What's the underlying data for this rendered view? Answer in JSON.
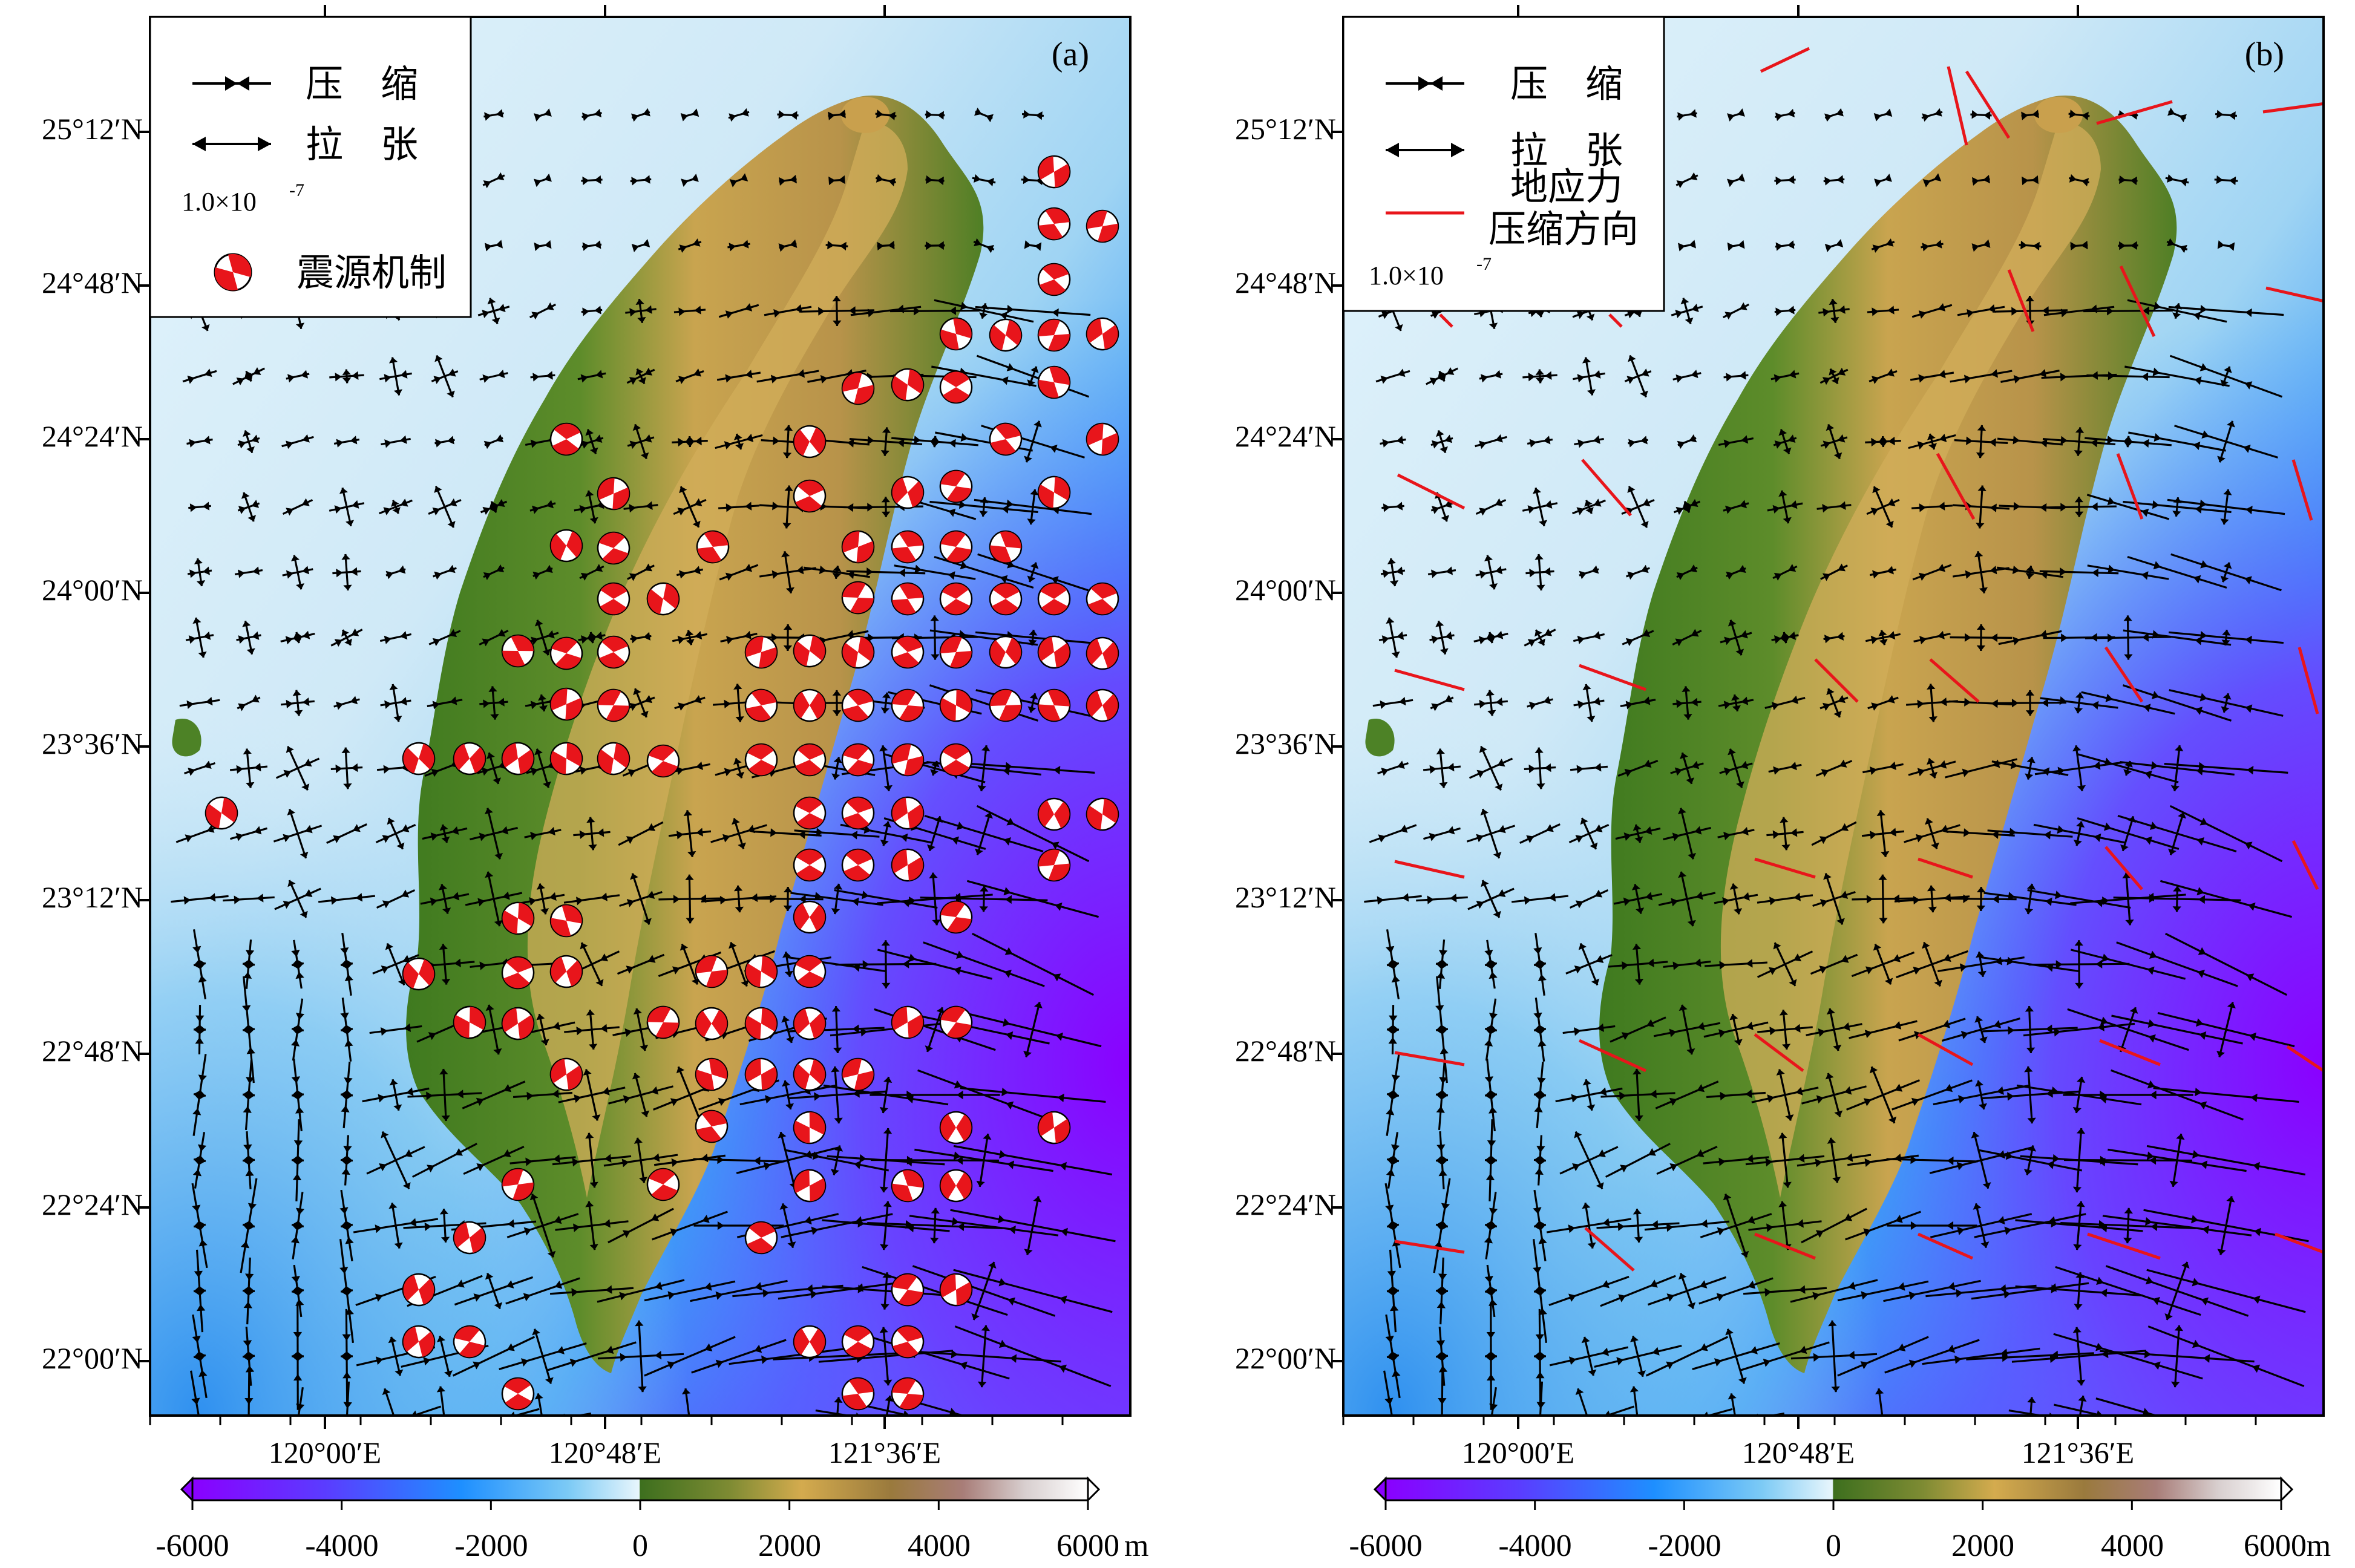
{
  "panels": [
    {
      "id": "a",
      "label": "(a)",
      "legend": {
        "compression": "压　缩",
        "extension": "拉　张",
        "scale": "1.0×10",
        "scale_exp": "-7",
        "focal": "震源机制"
      },
      "show_focal_mechanisms": true,
      "show_stress": false
    },
    {
      "id": "b",
      "label": "(b)",
      "legend": {
        "compression": "压　缩",
        "extension": "拉　张",
        "stress_line1": "地应力",
        "stress_line2": "压缩方向",
        "scale": "1.0×10",
        "scale_exp": "-7"
      },
      "show_focal_mechanisms": false,
      "show_stress": true
    }
  ],
  "axes": {
    "lat_labels": [
      "25°12′N",
      "24°48′N",
      "24°24′N",
      "24°00′N",
      "23°36′N",
      "23°12′N",
      "22°48′N",
      "22°24′N",
      "22°00′N"
    ],
    "lon_labels": [
      "120°00′E",
      "120°48′E",
      "121°36′E"
    ]
  },
  "colorbar": {
    "ticks": [
      "-6000",
      "-4000",
      "-2000",
      "0",
      "2000",
      "4000",
      "6000"
    ],
    "unit": "m",
    "range": [
      -6000,
      6000
    ]
  },
  "colors": {
    "deep_ocean": "#7f00ff",
    "ocean": "#1e90ff",
    "shallow": "#dff1fb",
    "lowland": "#3f7a1f",
    "highland": "#c8a650",
    "peak": "#b08b84",
    "focal_red": "#e8151b",
    "stress_red": "#e8151b"
  }
}
